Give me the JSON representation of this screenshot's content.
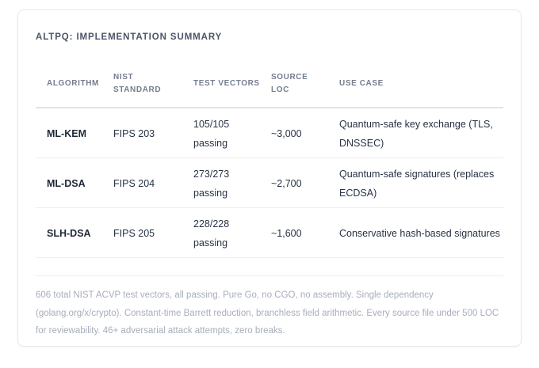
{
  "card": {
    "title": "ALTPQ: IMPLEMENTATION SUMMARY",
    "table": {
      "columns": [
        "ALGORITHM",
        "NIST STANDARD",
        "TEST VECTORS",
        "SOURCE LOC",
        "USE CASE"
      ],
      "rows": [
        [
          "ML-KEM",
          "FIPS 203",
          "105/105 passing",
          "~3,000",
          "Quantum-safe key exchange (TLS, DNSSEC)"
        ],
        [
          "ML-DSA",
          "FIPS 204",
          "273/273 passing",
          "~2,700",
          "Quantum-safe signatures (replaces ECDSA)"
        ],
        [
          "SLH-DSA",
          "FIPS 205",
          "228/228 passing",
          "~1,600",
          "Conservative hash-based signatures"
        ]
      ]
    },
    "footnote": "606 total NIST ACVP test vectors, all passing. Pure Go, no CGO, no assembly. Single dependency (golang.org/x/crypto). Constant-time Barrett reduction, branchless field arithmetic. Every source file under 500 LOC for reviewability. 46+ adversarial attack attempts, zero breaks."
  },
  "colors": {
    "card_border": "#e8e9ec",
    "title_text": "#4a5568",
    "header_text": "#747e8e",
    "body_text": "#273244",
    "footnote_text": "#a7aebb",
    "divider": "#edeef1",
    "header_divider": "#e1e3e7"
  }
}
